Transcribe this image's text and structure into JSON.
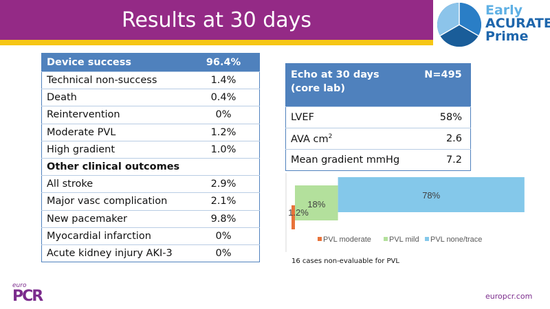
{
  "header": {
    "title": "Results at 30 days",
    "colors": {
      "title_bar": "#942a86",
      "underline": "#f6c615"
    }
  },
  "logo": {
    "line1": "Early",
    "line2": "ACURATE",
    "line3": "Prime",
    "icon": "pie-logo-icon"
  },
  "outcomes_table": {
    "header": {
      "label": "Device success",
      "value": "96.4%"
    },
    "rows": [
      {
        "label": "Technical non-success",
        "value": "1.4%"
      },
      {
        "label": "Death",
        "value": "0.4%"
      },
      {
        "label": "Reintervention",
        "value": "0%"
      },
      {
        "label": "Moderate PVL",
        "value": "1.2%"
      },
      {
        "label": "High gradient",
        "value": "1.0%"
      }
    ],
    "section": {
      "label": "Other clinical outcomes",
      "value": ""
    },
    "rows2": [
      {
        "label": "All stroke",
        "value": "2.9%"
      },
      {
        "label": "Major vasc complication",
        "value": "2.1%"
      },
      {
        "label": "New pacemaker",
        "value": "9.8%"
      },
      {
        "label": "Myocardial infarction",
        "value": "0%"
      },
      {
        "label": "Acute kidney injury AKI-3",
        "value": "0%"
      }
    ]
  },
  "echo_table": {
    "header": {
      "label": "Echo at 30 days (core lab)",
      "value": "N=495"
    },
    "rows": [
      {
        "label": "LVEF",
        "value": "58%"
      },
      {
        "label": "AVA cm",
        "sup": "2",
        "value": "2.6"
      },
      {
        "label": "Mean gradient mmHg",
        "value": "7.2"
      }
    ]
  },
  "chart_data": {
    "type": "bar",
    "orientation": "horizontal-stacked",
    "title": "",
    "xlabel": "",
    "ylabel": "",
    "categories": [
      "PVL"
    ],
    "series": [
      {
        "name": "PVL moderate",
        "values": [
          1.2
        ],
        "label": "1.2%",
        "color": "#e8733a"
      },
      {
        "name": "PVL mild",
        "values": [
          18
        ],
        "label": "18%",
        "color": "#b3e09c"
      },
      {
        "name": "PVL none/trace",
        "values": [
          78
        ],
        "label": "78%",
        "color": "#84c8ea"
      }
    ],
    "legend_position": "bottom",
    "grid": false
  },
  "footnote": "16 cases non-evaluable for PVL",
  "footer": {
    "logo_small": "euro",
    "logo_main": "PCR",
    "site": "europcr.com"
  }
}
